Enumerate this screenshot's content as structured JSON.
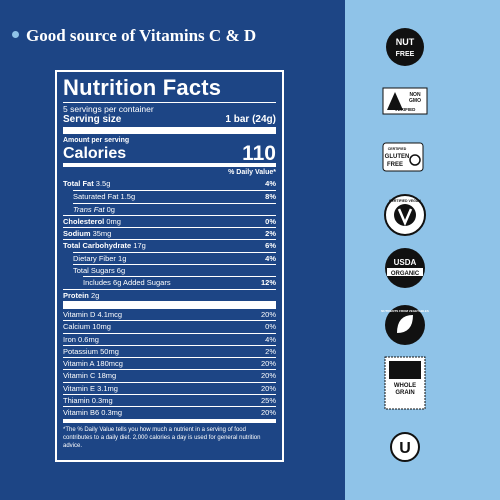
{
  "header": {
    "bullet": "Good source of Vitamins C & D"
  },
  "label": {
    "title": "Nutrition Facts",
    "servings": "5 servings per container",
    "serving_size_label": "Serving size",
    "serving_size_value": "1 bar (24g)",
    "amount_per_serving": "Amount per serving",
    "calories_label": "Calories",
    "calories_value": "110",
    "dv_header": "% Daily Value*",
    "nutrients": [
      {
        "name": "Total Fat",
        "amount": "3.5g",
        "dv": "4%"
      },
      {
        "name": "Saturated Fat",
        "amount": "1.5g",
        "dv": "8%"
      },
      {
        "name": "Trans Fat",
        "amount": "0g"
      },
      {
        "name": "Cholesterol",
        "amount": "0mg",
        "dv": "0%"
      },
      {
        "name": "Sodium",
        "amount": "35mg",
        "dv": "2%"
      },
      {
        "name": "Total Carbohydrate",
        "amount": "17g",
        "dv": "6%"
      },
      {
        "name": "Dietary Fiber",
        "amount": "1g",
        "dv": "4%"
      },
      {
        "name": "Total Sugars",
        "amount": "6g"
      },
      {
        "name": "Includes 6g Added Sugars",
        "dv": "12%"
      },
      {
        "name": "Protein",
        "amount": "2g"
      }
    ],
    "vitamins": [
      {
        "name": "Vitamin D",
        "amount": "4.1mcg",
        "dv": "20%"
      },
      {
        "name": "Calcium",
        "amount": "10mg",
        "dv": "0%"
      },
      {
        "name": "Iron",
        "amount": "0.6mg",
        "dv": "4%"
      },
      {
        "name": "Potassium",
        "amount": "50mg",
        "dv": "2%"
      },
      {
        "name": "Vitamin A",
        "amount": "180mcg",
        "dv": "20%"
      },
      {
        "name": "Vitamin C",
        "amount": "18mg",
        "dv": "20%"
      },
      {
        "name": "Vitamin E",
        "amount": "3.1mg",
        "dv": "20%"
      },
      {
        "name": "Thiamin",
        "amount": "0.3mg",
        "dv": "25%"
      },
      {
        "name": "Vitamin B6",
        "amount": "0.3mg",
        "dv": "20%"
      }
    ],
    "footnote": "*The % Daily Value tells you how much a nutrient in a serving of food contributes to a daily diet. 2,000 calories a day is used for general nutrition advice."
  },
  "badges": {
    "nut_free": [
      "NUT",
      "FREE"
    ],
    "non_gmo": [
      "NON",
      "GMO",
      "VERIFIED"
    ],
    "gluten_free": [
      "CERTIFIED",
      "GLUTEN",
      "FREE"
    ],
    "vegan": "CERTIFIED VEGAN",
    "usda": [
      "USDA",
      "ORGANIC"
    ],
    "vegetables": "NUTRIENTS FROM VEGETABLES",
    "whole_grain": [
      "WHOLE",
      "GRAIN"
    ],
    "kosher": "U"
  }
}
